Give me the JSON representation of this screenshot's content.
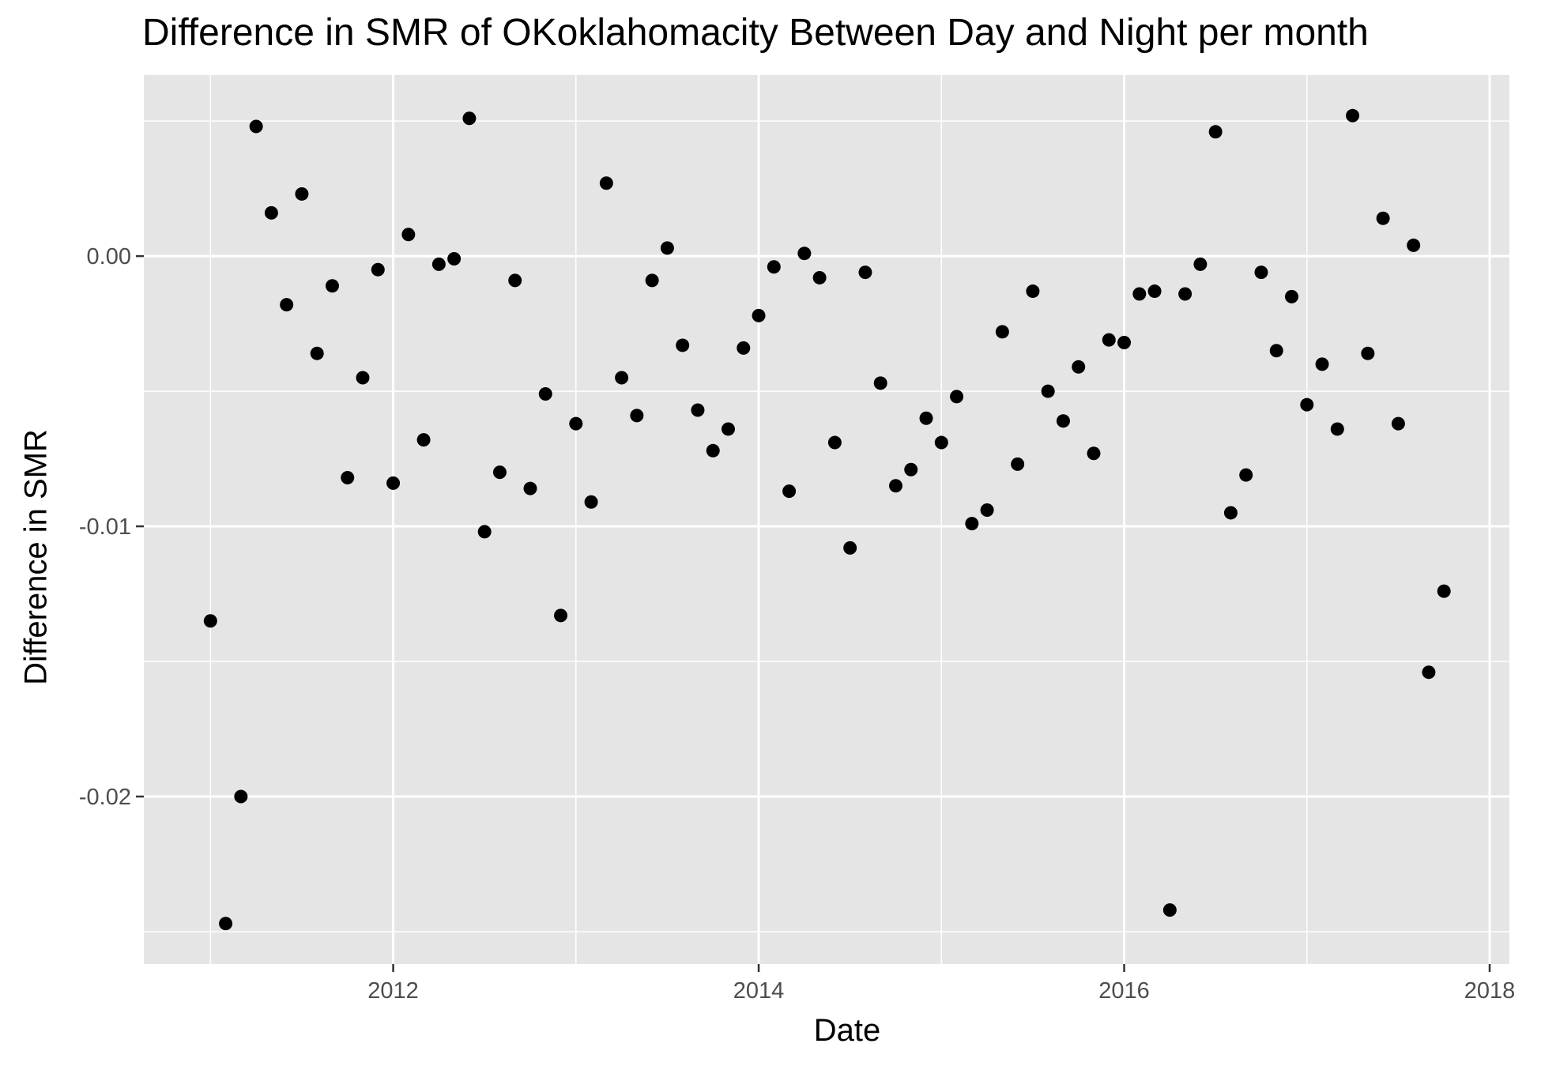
{
  "chart_data": {
    "type": "scatter",
    "title": "Difference in SMR of OKoklahomacity Between Day and Night per month",
    "xlabel": "Date",
    "ylabel": "Difference in SMR",
    "x_ticks": [
      "2012",
      "2014",
      "2016",
      "2018"
    ],
    "y_ticks": [
      "0.00",
      "-0.01",
      "-0.02"
    ],
    "xlim": [
      "2010-08-20",
      "2018-02-10"
    ],
    "ylim": [
      -0.0262,
      0.0067
    ],
    "grid": true,
    "colors": {
      "panel_bg": "#E5E5E5",
      "grid": "#FFFFFF",
      "point": "#000000",
      "tick_text": "#4D4D4D"
    },
    "series": [
      {
        "points": [
          {
            "x": "2011-01",
            "y": -0.0135
          },
          {
            "x": "2011-02",
            "y": -0.0247
          },
          {
            "x": "2011-03",
            "y": -0.02
          },
          {
            "x": "2011-04",
            "y": 0.0048
          },
          {
            "x": "2011-05",
            "y": 0.0016
          },
          {
            "x": "2011-06",
            "y": -0.0018
          },
          {
            "x": "2011-07",
            "y": 0.0023
          },
          {
            "x": "2011-08",
            "y": -0.0036
          },
          {
            "x": "2011-09",
            "y": -0.0011
          },
          {
            "x": "2011-10",
            "y": -0.0082
          },
          {
            "x": "2011-11",
            "y": -0.0045
          },
          {
            "x": "2011-12",
            "y": -0.0005
          },
          {
            "x": "2012-01",
            "y": -0.0084
          },
          {
            "x": "2012-02",
            "y": 0.0008
          },
          {
            "x": "2012-03",
            "y": -0.0068
          },
          {
            "x": "2012-04",
            "y": -0.0003
          },
          {
            "x": "2012-05",
            "y": -0.0001
          },
          {
            "x": "2012-06",
            "y": 0.0051
          },
          {
            "x": "2012-07",
            "y": -0.0102
          },
          {
            "x": "2012-08",
            "y": -0.008
          },
          {
            "x": "2012-09",
            "y": -0.0009
          },
          {
            "x": "2012-10",
            "y": -0.0086
          },
          {
            "x": "2012-11",
            "y": -0.0051
          },
          {
            "x": "2012-12",
            "y": -0.0133
          },
          {
            "x": "2013-01",
            "y": -0.0062
          },
          {
            "x": "2013-02",
            "y": -0.0091
          },
          {
            "x": "2013-03",
            "y": 0.0027
          },
          {
            "x": "2013-04",
            "y": -0.0045
          },
          {
            "x": "2013-05",
            "y": -0.0059
          },
          {
            "x": "2013-06",
            "y": -0.0009
          },
          {
            "x": "2013-07",
            "y": 0.0003
          },
          {
            "x": "2013-08",
            "y": -0.0033
          },
          {
            "x": "2013-09",
            "y": -0.0057
          },
          {
            "x": "2013-10",
            "y": -0.0072
          },
          {
            "x": "2013-11",
            "y": -0.0064
          },
          {
            "x": "2013-12",
            "y": -0.0034
          },
          {
            "x": "2014-01",
            "y": -0.0022
          },
          {
            "x": "2014-02",
            "y": -0.0004
          },
          {
            "x": "2014-03",
            "y": -0.0087
          },
          {
            "x": "2014-04",
            "y": 0.0001
          },
          {
            "x": "2014-05",
            "y": -0.0008
          },
          {
            "x": "2014-06",
            "y": -0.0069
          },
          {
            "x": "2014-07",
            "y": -0.0108
          },
          {
            "x": "2014-08",
            "y": -0.0006
          },
          {
            "x": "2014-09",
            "y": -0.0047
          },
          {
            "x": "2014-10",
            "y": -0.0085
          },
          {
            "x": "2014-11",
            "y": -0.0079
          },
          {
            "x": "2014-12",
            "y": -0.006
          },
          {
            "x": "2015-01",
            "y": -0.0069
          },
          {
            "x": "2015-02",
            "y": -0.0052
          },
          {
            "x": "2015-03",
            "y": -0.0099
          },
          {
            "x": "2015-04",
            "y": -0.0094
          },
          {
            "x": "2015-05",
            "y": -0.0028
          },
          {
            "x": "2015-06",
            "y": -0.0077
          },
          {
            "x": "2015-07",
            "y": -0.0013
          },
          {
            "x": "2015-08",
            "y": -0.005
          },
          {
            "x": "2015-09",
            "y": -0.0061
          },
          {
            "x": "2015-10",
            "y": -0.0041
          },
          {
            "x": "2015-11",
            "y": -0.0073
          },
          {
            "x": "2015-12",
            "y": -0.0031
          },
          {
            "x": "2016-01",
            "y": -0.0032
          },
          {
            "x": "2016-02",
            "y": -0.0014
          },
          {
            "x": "2016-03",
            "y": -0.0013
          },
          {
            "x": "2016-04",
            "y": -0.0242
          },
          {
            "x": "2016-05",
            "y": -0.0014
          },
          {
            "x": "2016-06",
            "y": -0.0003
          },
          {
            "x": "2016-07",
            "y": 0.0046
          },
          {
            "x": "2016-08",
            "y": -0.0095
          },
          {
            "x": "2016-09",
            "y": -0.0081
          },
          {
            "x": "2016-10",
            "y": -0.0006
          },
          {
            "x": "2016-11",
            "y": -0.0035
          },
          {
            "x": "2016-12",
            "y": -0.0015
          },
          {
            "x": "2017-01",
            "y": -0.0055
          },
          {
            "x": "2017-02",
            "y": -0.004
          },
          {
            "x": "2017-03",
            "y": -0.0064
          },
          {
            "x": "2017-04",
            "y": 0.0052
          },
          {
            "x": "2017-05",
            "y": -0.0036
          },
          {
            "x": "2017-06",
            "y": 0.0014
          },
          {
            "x": "2017-07",
            "y": -0.0062
          },
          {
            "x": "2017-08",
            "y": 0.0004
          },
          {
            "x": "2017-09",
            "y": -0.0154
          },
          {
            "x": "2017-10",
            "y": -0.0124
          }
        ]
      }
    ]
  }
}
